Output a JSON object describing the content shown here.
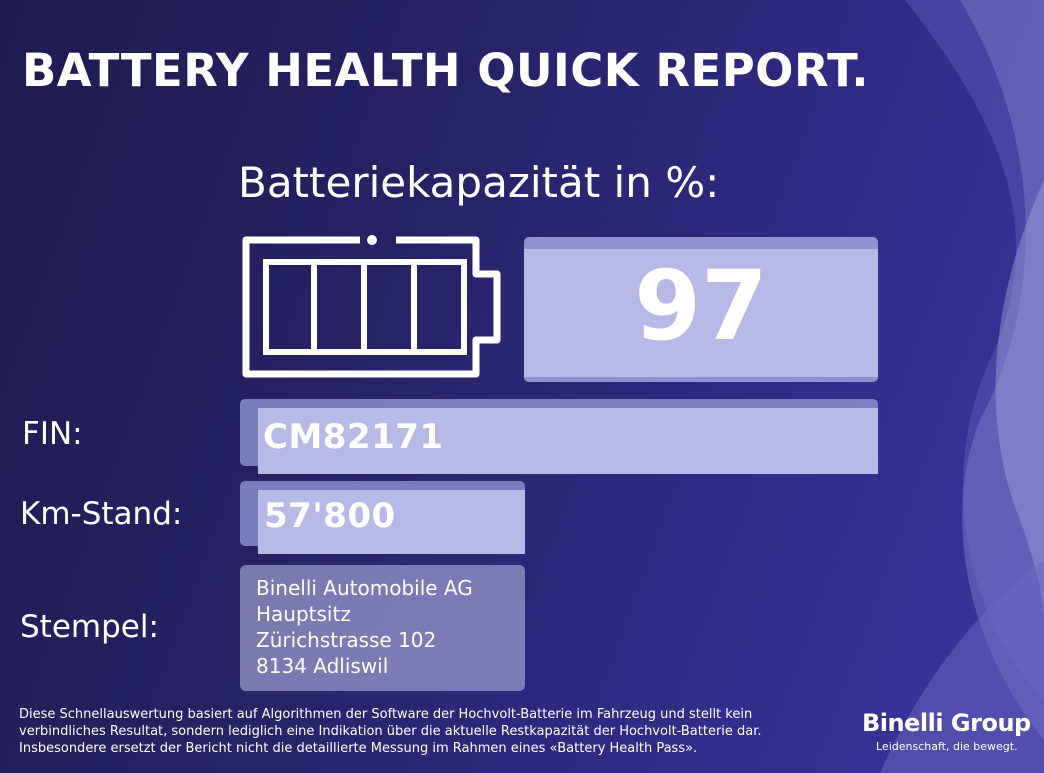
{
  "title": "BATTERY HEALTH QUICK REPORT.",
  "capacity": {
    "heading": "Batteriekapazität in %:",
    "value": "97",
    "battery_icon": "battery-full-icon"
  },
  "fields": {
    "fin_label": "FIN:",
    "fin_value": "CM82171",
    "km_label": "Km-Stand:",
    "km_value": "57'800",
    "stamp_label": "Stempel:",
    "stamp_lines": [
      "Binelli Automobile AG",
      "Hauptsitz",
      "Zürichstrasse 102",
      "8134 Adliswil"
    ]
  },
  "disclaimer": [
    "Diese Schnellauswertung basiert auf Algorithmen der Software der Hochvolt-Batterie im Fahrzeug und stellt kein",
    "verbindliches Resultat, sondern lediglich eine Indikation über die aktuelle Restkapazität der Hochvolt-Batterie dar.",
    "Insbesondere ersetzt der Bericht nicht die detaillierte Messung im Rahmen eines «Battery Health Pass»."
  ],
  "brand": {
    "name": "Binelli Group",
    "tagline": "Leidenschaft, die bewegt."
  },
  "colors": {
    "background": "#262264",
    "field_fill": "#b6b9e6",
    "field_frame": "#8a8dcc",
    "text": "#ffffff"
  }
}
